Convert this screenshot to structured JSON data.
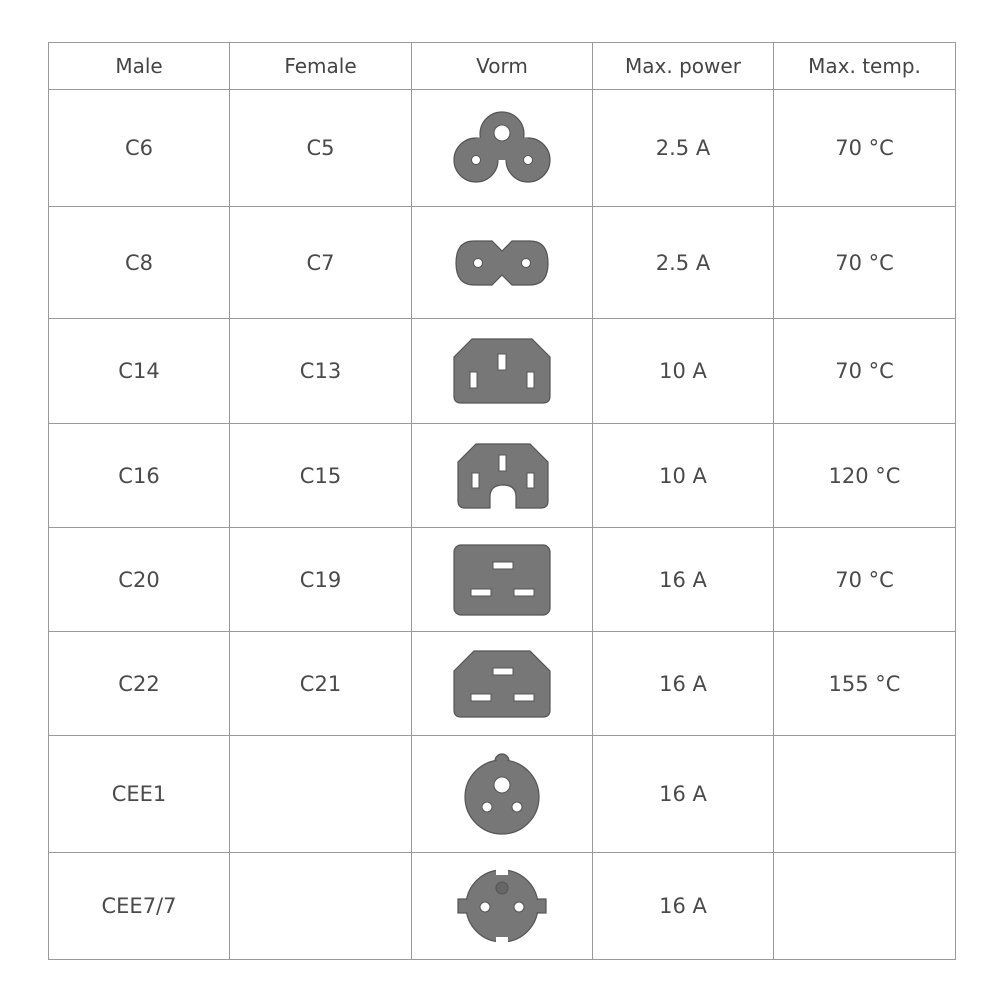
{
  "headers": [
    "Male",
    "Female",
    "Vorm",
    "Max. power",
    "Max. temp."
  ],
  "rows": [
    {
      "male": "C6",
      "female": "C5",
      "shape": "c5-cloverleaf-icon",
      "power": "2.5 A",
      "temp": "70 °C"
    },
    {
      "male": "C8",
      "female": "C7",
      "shape": "c7-figure8-icon",
      "power": "2.5 A",
      "temp": "70 °C"
    },
    {
      "male": "C14",
      "female": "C13",
      "shape": "c13-icon",
      "power": "10 A",
      "temp": "70 °C"
    },
    {
      "male": "C16",
      "female": "C15",
      "shape": "c15-icon",
      "power": "10 A",
      "temp": "120 °C"
    },
    {
      "male": "C20",
      "female": "C19",
      "shape": "c19-icon",
      "power": "16 A",
      "temp": "70 °C"
    },
    {
      "male": "C22",
      "female": "C21",
      "shape": "c21-icon",
      "power": "16 A",
      "temp": "155 °C"
    },
    {
      "male": "CEE1",
      "female": "",
      "shape": "cee1-icon",
      "power": "16 A",
      "temp": ""
    },
    {
      "male": "CEE7/7",
      "female": "",
      "shape": "cee7-7-schuko-icon",
      "power": "16 A",
      "temp": ""
    }
  ],
  "colors": {
    "shape_fill": "#777777",
    "border": "#9a9a9a",
    "text": "#4a4a4a"
  }
}
